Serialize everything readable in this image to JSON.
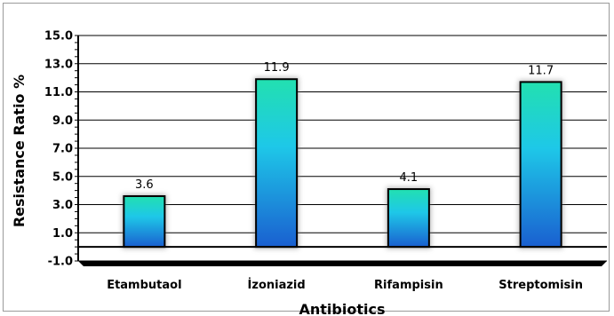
{
  "chart_data": {
    "type": "bar",
    "title": "",
    "xlabel": "Antibiotics",
    "ylabel": "Resistance Ratio %",
    "categories": [
      "Etambutaol",
      "İzoniazid",
      "Rifampisin",
      "Streptomisin"
    ],
    "values": [
      3.6,
      11.9,
      4.1,
      11.7
    ],
    "data_labels": [
      "3.6",
      "11.9",
      "4.1",
      "11.7"
    ],
    "ylim": [
      -1.0,
      15.0
    ],
    "yticks": [
      "15.0",
      "13.0",
      "11.0",
      "9.0",
      "7.0",
      "5.0",
      "3.0",
      "1.0",
      "-1.0"
    ],
    "grid": true,
    "legend": "none",
    "colors": {
      "bar_top": "#22e0b0",
      "bar_mid": "#1ec8e8",
      "bar_bottom": "#1a5fd0",
      "bar_border": "#000000",
      "grid": "#000000"
    }
  }
}
